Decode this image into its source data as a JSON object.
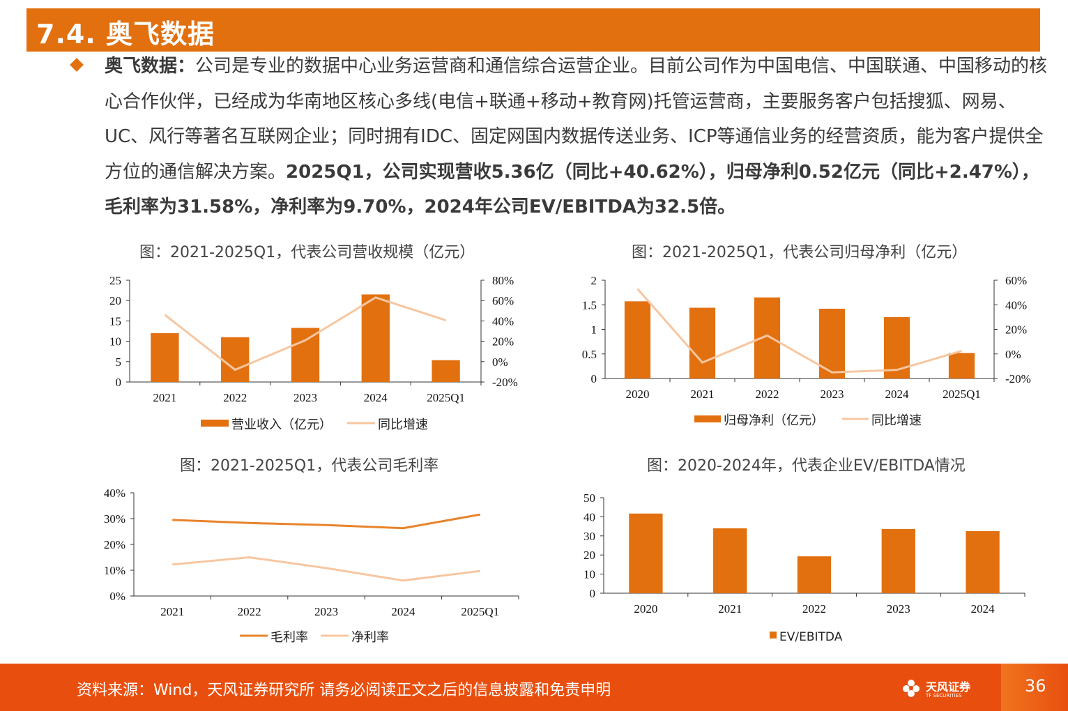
{
  "header": {
    "title": "7.4. 奥飞数据"
  },
  "paragraph": {
    "lead": "奥飞数据：",
    "body": "公司是专业的数据中心业务运营商和通信综合运营企业。目前公司作为中国电信、中国联通、中国移动的核心合作伙伴，已经成为华南地区核心多线(电信+联通+移动+教育网)托管运营商，主要服务客户包括搜狐、网易、UC、风行等著名互联网企业；同时拥有IDC、固定网国内数据传送业务、ICP等通信业务的经营资质，能为客户提供全方位的通信解决方案。",
    "highlight": "2025Q1，公司实现营收5.36亿（同比+40.62%），归母净利0.52亿元（同比+2.47%），毛利率为31.58%，净利率为9.70%，2024年公司EV/EBITDA为32.5倍。"
  },
  "chart_data": [
    {
      "id": "revenue",
      "type": "bar+line",
      "title": "图：2021-2025Q1，代表公司营收规模（亿元）",
      "categories": [
        "2021",
        "2022",
        "2023",
        "2024",
        "2025Q1"
      ],
      "left_ticks": [
        "25",
        "20",
        "15",
        "10",
        "5",
        "0"
      ],
      "right_ticks": [
        "80%",
        "60%",
        "40%",
        "20%",
        "0%",
        "-20%"
      ],
      "ylim_left": [
        0,
        25
      ],
      "ylim_right": [
        -20,
        80
      ],
      "series": [
        {
          "name": "营业收入（亿元）",
          "kind": "bar",
          "axis": "left",
          "values": [
            12.0,
            11.0,
            13.3,
            21.5,
            5.36
          ]
        },
        {
          "name": "同比增速",
          "kind": "line",
          "axis": "right",
          "values": [
            46,
            -8,
            21,
            63,
            40.62
          ]
        }
      ]
    },
    {
      "id": "net_profit",
      "type": "bar+line",
      "title": "图：2021-2025Q1，代表公司归母净利（亿元）",
      "categories": [
        "2020",
        "2021",
        "2022",
        "2023",
        "2024",
        "2025Q1"
      ],
      "left_ticks": [
        "2",
        "1.5",
        "1",
        "0.5",
        "0"
      ],
      "right_ticks": [
        "60%",
        "40%",
        "20%",
        "0%",
        "-20%"
      ],
      "ylim_left": [
        0,
        2
      ],
      "ylim_right": [
        -20,
        60
      ],
      "series": [
        {
          "name": "归母净利（亿元）",
          "kind": "bar",
          "axis": "left",
          "values": [
            1.57,
            1.44,
            1.65,
            1.42,
            1.25,
            0.52
          ]
        },
        {
          "name": "同比增速",
          "kind": "line",
          "axis": "right",
          "values": [
            53,
            -7,
            15,
            -15,
            -13,
            2.47
          ]
        }
      ]
    },
    {
      "id": "margins",
      "type": "line",
      "title": "图：2021-2025Q1，代表公司毛利率",
      "categories": [
        "2021",
        "2022",
        "2023",
        "2024",
        "2025Q1"
      ],
      "left_ticks": [
        "40%",
        "30%",
        "20%",
        "10%",
        "0%"
      ],
      "ylim": [
        0,
        40
      ],
      "series": [
        {
          "name": "毛利率",
          "values": [
            29.5,
            28.3,
            27.5,
            26.3,
            31.58
          ]
        },
        {
          "name": "净利率",
          "values": [
            12.2,
            15.0,
            10.8,
            6.0,
            9.7
          ]
        }
      ]
    },
    {
      "id": "ev_ebitda",
      "type": "bar",
      "title": "图：2020-2024年，代表企业EV/EBITDA情况",
      "categories": [
        "2020",
        "2021",
        "2022",
        "2023",
        "2024"
      ],
      "left_ticks": [
        "50",
        "40",
        "30",
        "20",
        "10",
        "0"
      ],
      "ylim": [
        0,
        50
      ],
      "series": [
        {
          "name": "EV/EBITDA",
          "values": [
            41.7,
            34.0,
            19.3,
            33.6,
            32.5
          ]
        }
      ]
    }
  ],
  "colors": {
    "bar": "#e2700f",
    "line_light": "#f7c6a0",
    "line_dark": "#e8832a",
    "footer": "#e84f0f"
  },
  "footer": {
    "source": "资料来源：Wind，天风证券研究所  请务必阅读正文之后的信息披露和免责申明",
    "logo_text": "天风证券",
    "logo_sub": "TF SECURITIES",
    "page": "36"
  }
}
